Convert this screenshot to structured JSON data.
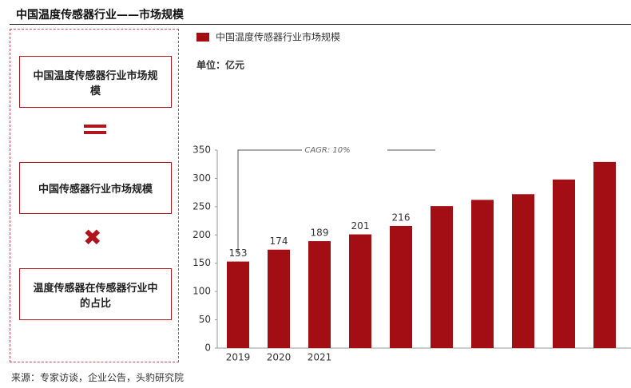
{
  "header": {
    "title": "中国温度传感器行业——市场规模"
  },
  "diagram": {
    "boxes": [
      "中国温度传感器行业市场规模",
      "中国传感器行业市场规模",
      "温度传感器在传感器行业中的占比"
    ]
  },
  "source": "来源：专家访谈，企业公告，头豹研究院",
  "chart_data": {
    "type": "bar",
    "subtitle": "单位：亿元",
    "annotation": "CAGR: 10%",
    "categories": [
      "2019",
      "2020",
      "2021",
      null,
      null,
      null,
      null,
      null,
      null,
      null
    ],
    "series": [
      {
        "name": "中国温度传感器行业市场规模",
        "color": "#a30d14",
        "values": [
          153,
          174,
          189,
          201,
          216,
          251,
          262,
          272,
          298,
          329
        ]
      }
    ],
    "value_labels": [
      "153",
      "174",
      "189",
      "201",
      "216",
      null,
      null,
      null,
      null,
      null
    ],
    "ylim": [
      0,
      350
    ],
    "yticks": [
      0,
      50,
      100,
      150,
      200,
      250,
      300,
      350
    ],
    "legend": "top-left"
  }
}
